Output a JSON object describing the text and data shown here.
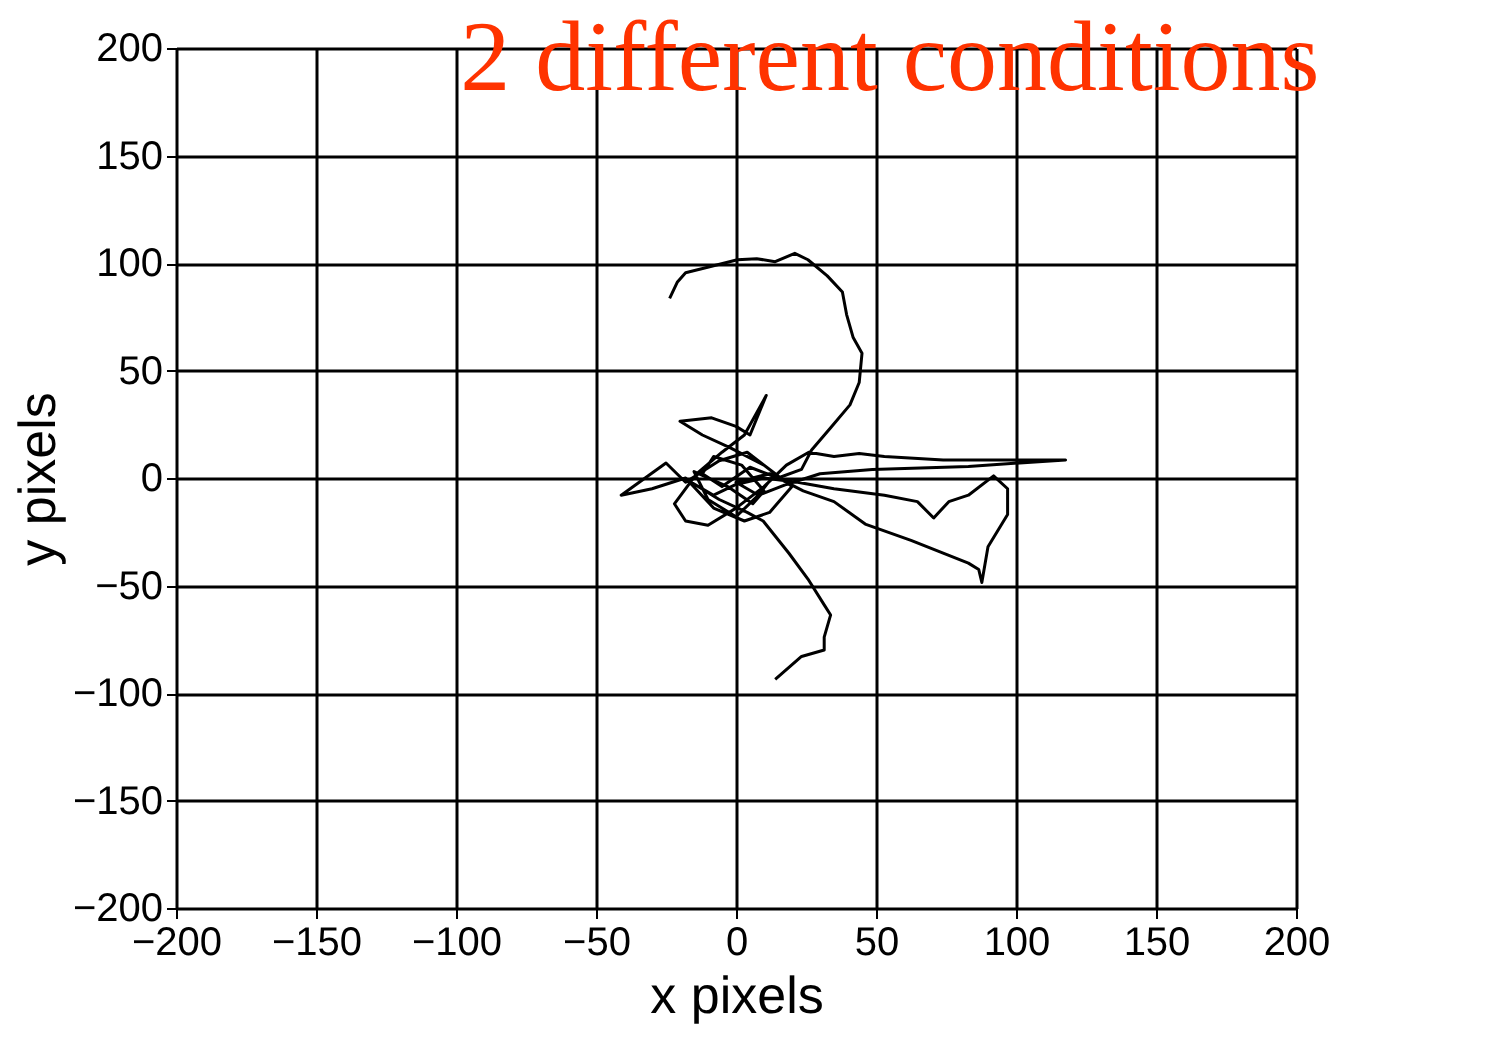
{
  "chart_data": {
    "type": "line",
    "title": "2 different conditions",
    "xlabel": "x pixels",
    "ylabel": "y pixels",
    "xlim": [
      -200,
      200
    ],
    "xticks": [
      -200,
      -150,
      -100,
      -50,
      0,
      50,
      100,
      150,
      200
    ],
    "ylim": [
      -200,
      200
    ],
    "yticks": [
      -200,
      -150,
      -100,
      -50,
      0,
      50,
      100,
      150,
      200
    ],
    "grid": true,
    "marker": "none",
    "line_style": "solid",
    "series": [
      {
        "color": "#000000",
        "x": [
          -23.7,
          -21,
          -18,
          -8.7,
          0.5,
          7.4,
          14,
          21,
          25.7,
          32.6,
          38,
          39.5,
          41.8,
          45,
          44,
          40.7,
          33.8,
          27,
          23.4,
          15,
          5,
          -5,
          -12,
          -8,
          2,
          10,
          6,
          -3,
          -15,
          -10,
          0,
          8,
          14,
          4,
          -6,
          -18,
          -25,
          -36.3,
          -41,
          -30,
          -18,
          -8,
          3,
          12,
          20,
          10,
          -2,
          -12,
          -20,
          -8.7,
          0,
          5,
          10.8,
          3,
          -5,
          -14,
          -22,
          -18,
          -10,
          0,
          10,
          18,
          26,
          35,
          44,
          53,
          74,
          117.7,
          83,
          48.7,
          30,
          18,
          8,
          0,
          12,
          24,
          35,
          46.4,
          62.5,
          83,
          86.7,
          87.8,
          90,
          97,
          97,
          92,
          83,
          76,
          70.6,
          64.8,
          53,
          35,
          22,
          10,
          0,
          -8,
          -16,
          -6,
          4,
          9.7,
          18.9,
          25.7,
          31.5,
          33.8,
          31.5,
          31.5,
          23.4,
          14
        ],
        "values": [
          83.5,
          91,
          95.5,
          98.5,
          101.5,
          102,
          100.6,
          104.5,
          101.5,
          94,
          86.5,
          76,
          65.5,
          58,
          44.4,
          34,
          23.4,
          13,
          4,
          0,
          5,
          -4,
          2,
          10,
          6,
          -6,
          -12,
          -4,
          3,
          -10,
          -18,
          -8,
          2,
          12,
          8,
          -2,
          7,
          -3.6,
          -8,
          -5,
          0,
          -14,
          -20,
          -16,
          -4,
          6,
          14,
          20,
          26.4,
          28,
          24,
          20,
          38.4,
          20,
          12,
          2,
          -12,
          -20,
          -22,
          -14,
          -4,
          6,
          12,
          10,
          11.4,
          10,
          8.4,
          8.4,
          5.4,
          3.9,
          2,
          -3,
          -8,
          -2,
          2,
          -6,
          -11,
          -21.6,
          -29,
          -39.6,
          -42.6,
          -48.6,
          -32,
          -17,
          -5,
          1,
          -8,
          -11,
          -18.6,
          -11,
          -8,
          -5,
          -2,
          0,
          -3,
          -8,
          -2,
          -10,
          -16,
          -20,
          -35,
          -47,
          -59,
          -63.7,
          -74,
          -80,
          -83,
          -93.7
        ]
      }
    ]
  }
}
